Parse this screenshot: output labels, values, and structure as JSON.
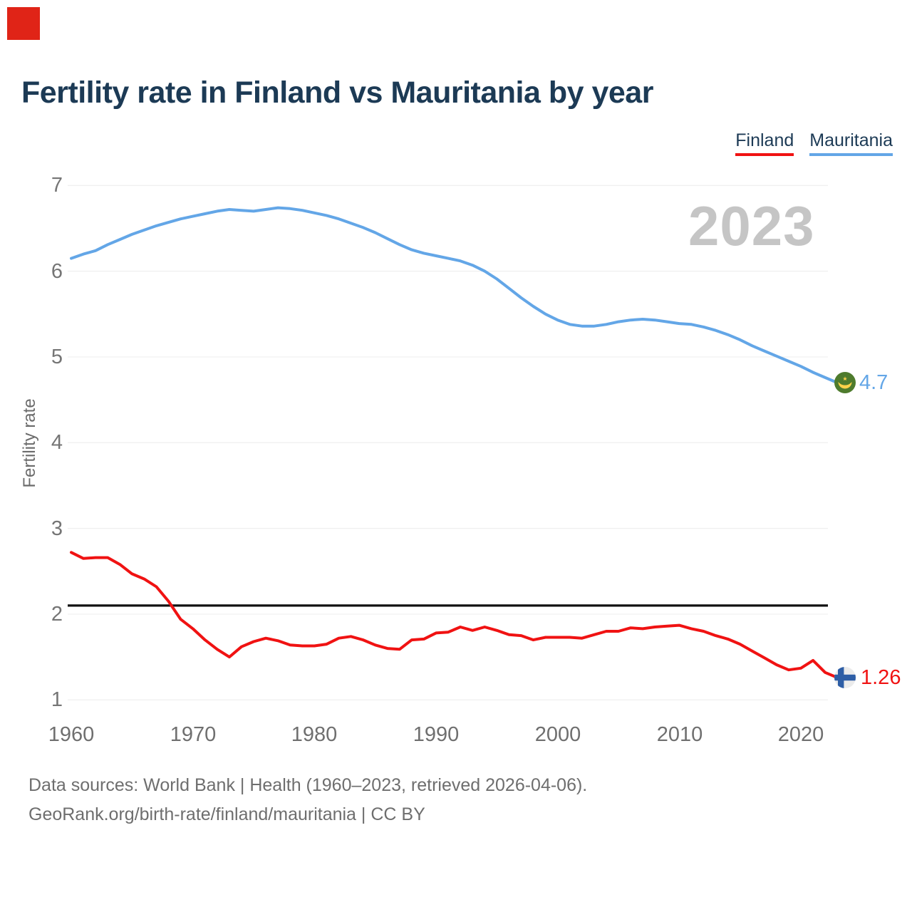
{
  "title": "Fertility rate in Finland vs Mauritania by year",
  "watermark_year": "2023",
  "marker": {
    "color": "#e02417"
  },
  "legend": {
    "items": [
      {
        "label": "Finland",
        "color": "#f01212"
      },
      {
        "label": "Mauritania",
        "color": "#63a6e7"
      }
    ]
  },
  "axes": {
    "y_label": "Fertility rate",
    "y_ticks": [
      "7",
      "6",
      "5",
      "4",
      "3",
      "2",
      "1"
    ],
    "x_ticks": [
      "1960",
      "1970",
      "1980",
      "1990",
      "2000",
      "2010",
      "2020"
    ]
  },
  "end_labels": {
    "mauritania": "4.7",
    "finland": "1.26"
  },
  "flags": {
    "mauritania_green": "#4e7b2d",
    "mauritania_gold": "#ffd24a",
    "finland_bg": "#ebebeb",
    "finland_blue": "#2e5ea6"
  },
  "footer": {
    "line1": "Data sources: World Bank | Health (1960–2023, retrieved 2026-04-06).",
    "line2": "GeoRank.org/birth-rate/finland/mauritania | CC BY"
  },
  "chart_data": {
    "type": "line",
    "title": "Fertility rate in Finland vs Mauritania by year",
    "xlabel": "",
    "ylabel": "Fertility rate",
    "xlim": [
      1960,
      2023
    ],
    "ylim": [
      1,
      7
    ],
    "grid": true,
    "legend_position": "top-right",
    "x_tick_years": [
      1960,
      1970,
      1980,
      1990,
      2000,
      2010,
      2020
    ],
    "y_tick_values": [
      7,
      6,
      5,
      4,
      3,
      2,
      1
    ],
    "reference_line": {
      "value": 2.1,
      "color": "#111111",
      "label": ""
    },
    "x": [
      1960,
      1961,
      1962,
      1963,
      1964,
      1965,
      1966,
      1967,
      1968,
      1969,
      1970,
      1971,
      1972,
      1973,
      1974,
      1975,
      1976,
      1977,
      1978,
      1979,
      1980,
      1981,
      1982,
      1983,
      1984,
      1985,
      1986,
      1987,
      1988,
      1989,
      1990,
      1991,
      1992,
      1993,
      1994,
      1995,
      1996,
      1997,
      1998,
      1999,
      2000,
      2001,
      2002,
      2003,
      2004,
      2005,
      2006,
      2007,
      2008,
      2009,
      2010,
      2011,
      2012,
      2013,
      2014,
      2015,
      2016,
      2017,
      2018,
      2019,
      2020,
      2021,
      2022,
      2023
    ],
    "series": [
      {
        "name": "Finland",
        "color": "#f01212",
        "end_value_label": "1.26",
        "values": [
          2.72,
          2.65,
          2.66,
          2.66,
          2.58,
          2.47,
          2.41,
          2.32,
          2.15,
          1.94,
          1.83,
          1.7,
          1.59,
          1.5,
          1.62,
          1.68,
          1.72,
          1.69,
          1.64,
          1.63,
          1.63,
          1.65,
          1.72,
          1.74,
          1.7,
          1.64,
          1.6,
          1.59,
          1.7,
          1.71,
          1.78,
          1.79,
          1.85,
          1.81,
          1.85,
          1.81,
          1.76,
          1.75,
          1.7,
          1.73,
          1.73,
          1.73,
          1.72,
          1.76,
          1.8,
          1.8,
          1.84,
          1.83,
          1.85,
          1.86,
          1.87,
          1.83,
          1.8,
          1.75,
          1.71,
          1.65,
          1.57,
          1.49,
          1.41,
          1.35,
          1.37,
          1.46,
          1.32,
          1.26
        ]
      },
      {
        "name": "Mauritania",
        "color": "#63a6e7",
        "end_value_label": "4.7",
        "values": [
          6.15,
          6.2,
          6.24,
          6.31,
          6.37,
          6.43,
          6.48,
          6.53,
          6.57,
          6.61,
          6.64,
          6.67,
          6.7,
          6.72,
          6.71,
          6.7,
          6.72,
          6.74,
          6.73,
          6.71,
          6.68,
          6.65,
          6.61,
          6.56,
          6.51,
          6.45,
          6.38,
          6.31,
          6.25,
          6.21,
          6.18,
          6.15,
          6.12,
          6.07,
          6.0,
          5.91,
          5.8,
          5.69,
          5.59,
          5.5,
          5.43,
          5.38,
          5.36,
          5.36,
          5.38,
          5.41,
          5.43,
          5.44,
          5.43,
          5.41,
          5.39,
          5.38,
          5.35,
          5.31,
          5.26,
          5.2,
          5.13,
          5.07,
          5.01,
          4.95,
          4.89,
          4.82,
          4.76,
          4.7
        ]
      }
    ]
  }
}
